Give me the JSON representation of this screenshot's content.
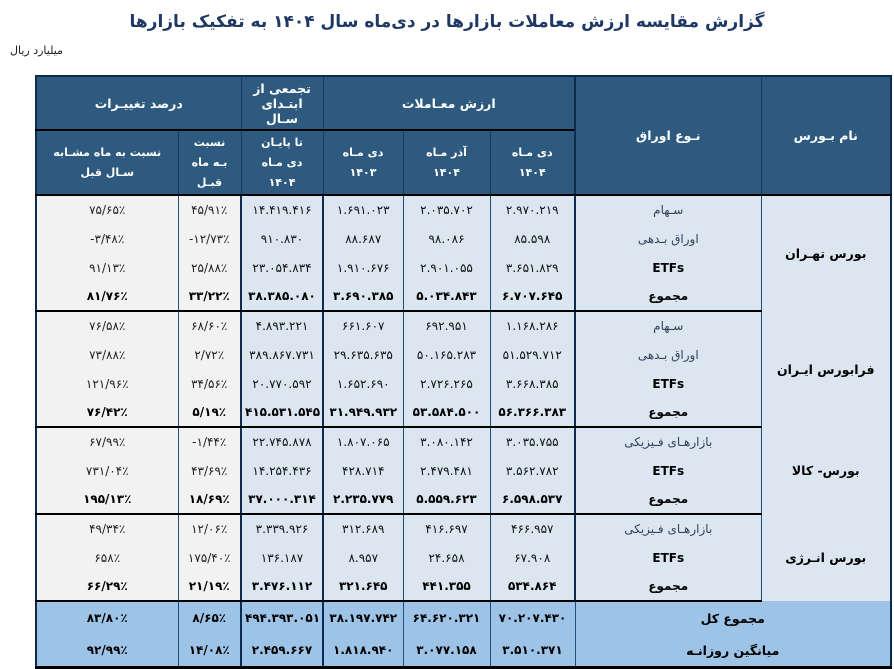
{
  "title": "گزارش مقایسه ارزش معاملات بازارها در دی‌ماه سال ۱۴۰۴ به تفکیک بازارها",
  "unit_label": "میلیارد ریال",
  "colors": {
    "header_bg": "#2d5a7e",
    "body_blue": "#dce6f1",
    "percent_bg": "#f2f2f2",
    "footer_bg": "#9dc3e6",
    "title_color": "#1f3864",
    "border_dark": "#0d2b4e"
  },
  "header": {
    "exchange_name": "نام بـورس",
    "securities_type": "نـوع اوراق",
    "trade_value": "ارزش معـاملات",
    "month_current": "دی مـاه ۱۴۰۴",
    "month_prev": "آذر مـاه ۱۴۰۴",
    "month_lastyear": "دی مـاه ۱۴۰۳",
    "cumulative": "تجمعی از ابتـدای سـال",
    "cumulative_sub": "تا پایـان دی مـاه ۱۴۰۴",
    "pct_changes": "درصد تغییـرات",
    "pct_mom": "نسبت بـه ماه قبـل",
    "pct_yoy": "نسبت به ماه مشـابه سـال قبل"
  },
  "groups": [
    {
      "name": "بورس تهـران",
      "rows": [
        {
          "label": "سـهام",
          "d1404": "۲.۹۷۰.۲۱۹",
          "a1404": "۲.۰۳۵.۷۰۲",
          "d1403": "۱.۶۹۱.۰۲۳",
          "cum": "۱۴.۴۱۹.۴۱۶",
          "mom": "۴۵/۹۱٪",
          "yoy": "۷۵/۶۵٪"
        },
        {
          "label": "اوراق بـدهی",
          "d1404": "۸۵.۵۹۸",
          "a1404": "۹۸.۰۸۶",
          "d1403": "۸۸.۶۸۷",
          "cum": "۹۱۰.۸۳۰",
          "mom": "-۱۲/۷۳٪",
          "yoy": "-۳/۴۸٪"
        },
        {
          "label": "ETFs",
          "d1404": "۳.۶۵۱.۸۲۹",
          "a1404": "۲.۹۰۱.۰۵۵",
          "d1403": "۱.۹۱۰.۶۷۶",
          "cum": "۲۳.۰۵۴.۸۳۴",
          "mom": "۲۵/۸۸٪",
          "yoy": "۹۱/۱۳٪"
        },
        {
          "label": "مجموع",
          "d1404": "۶.۷۰۷.۶۴۵",
          "a1404": "۵.۰۳۴.۸۴۳",
          "d1403": "۳.۶۹۰.۳۸۵",
          "cum": "۳۸.۳۸۵.۰۸۰",
          "mom": "۳۳/۲۲٪",
          "yoy": "۸۱/۷۶٪"
        }
      ]
    },
    {
      "name": "فرابورس ایـران",
      "rows": [
        {
          "label": "سـهام",
          "d1404": "۱.۱۶۸.۲۸۶",
          "a1404": "۶۹۲.۹۵۱",
          "d1403": "۶۶۱.۶۰۷",
          "cum": "۴.۸۹۳.۲۲۱",
          "mom": "۶۸/۶۰٪",
          "yoy": "۷۶/۵۸٪"
        },
        {
          "label": "اوراق بـدهی",
          "d1404": "۵۱.۵۲۹.۷۱۲",
          "a1404": "۵۰.۱۶۵.۲۸۳",
          "d1403": "۲۹.۶۳۵.۶۳۵",
          "cum": "۳۸۹.۸۶۷.۷۳۱",
          "mom": "۲/۷۲٪",
          "yoy": "۷۳/۸۸٪"
        },
        {
          "label": "ETFs",
          "d1404": "۳.۶۶۸.۳۸۵",
          "a1404": "۲.۷۲۶.۲۶۵",
          "d1403": "۱.۶۵۲.۶۹۰",
          "cum": "۲۰.۷۷۰.۵۹۲",
          "mom": "۳۴/۵۶٪",
          "yoy": "۱۲۱/۹۶٪"
        },
        {
          "label": "مجموع",
          "d1404": "۵۶.۳۶۶.۳۸۳",
          "a1404": "۵۳.۵۸۴.۵۰۰",
          "d1403": "۳۱.۹۴۹.۹۳۲",
          "cum": "۴۱۵.۵۳۱.۵۴۵",
          "mom": "۵/۱۹٪",
          "yoy": "۷۶/۴۲٪"
        }
      ]
    },
    {
      "name": "بورس- کالا",
      "rows": [
        {
          "label": "بازارهـای فـیزیکی",
          "d1404": "۳.۰۳۵.۷۵۵",
          "a1404": "۳.۰۸۰.۱۴۲",
          "d1403": "۱.۸۰۷.۰۶۵",
          "cum": "۲۲.۷۴۵.۸۷۸",
          "mom": "-۱/۴۴٪",
          "yoy": "۶۷/۹۹٪"
        },
        {
          "label": "ETFs",
          "d1404": "۳.۵۶۲.۷۸۲",
          "a1404": "۲.۴۷۹.۴۸۱",
          "d1403": "۴۲۸.۷۱۴",
          "cum": "۱۴.۲۵۴.۴۳۶",
          "mom": "۴۳/۶۹٪",
          "yoy": "۷۳۱/۰۴٪"
        },
        {
          "label": "مجموع",
          "d1404": "۶.۵۹۸.۵۳۷",
          "a1404": "۵.۵۵۹.۶۲۳",
          "d1403": "۲.۲۳۵.۷۷۹",
          "cum": "۳۷.۰۰۰.۳۱۴",
          "mom": "۱۸/۶۹٪",
          "yoy": "۱۹۵/۱۳٪"
        }
      ]
    },
    {
      "name": "بورس انـرژی",
      "rows": [
        {
          "label": "بازارهـای فـیزیکی",
          "d1404": "۴۶۶.۹۵۷",
          "a1404": "۴۱۶.۶۹۷",
          "d1403": "۳۱۲.۶۸۹",
          "cum": "۳.۳۳۹.۹۲۶",
          "mom": "۱۲/۰۶٪",
          "yoy": "۴۹/۳۴٪"
        },
        {
          "label": "ETFs",
          "d1404": "۶۷.۹۰۸",
          "a1404": "۲۴.۶۵۸",
          "d1403": "۸.۹۵۷",
          "cum": "۱۳۶.۱۸۷",
          "mom": "۱۷۵/۴۰٪",
          "yoy": "۶۵۸٪"
        },
        {
          "label": "مجموع",
          "d1404": "۵۳۴.۸۶۴",
          "a1404": "۴۴۱.۳۵۵",
          "d1403": "۳۲۱.۶۴۵",
          "cum": "۳.۴۷۶.۱۱۲",
          "mom": "۲۱/۱۹٪",
          "yoy": "۶۶/۲۹٪"
        }
      ]
    }
  ],
  "footer": [
    {
      "label": "مجموع کل",
      "d1404": "۷۰.۲۰۷.۴۳۰",
      "a1404": "۶۴.۶۲۰.۳۲۱",
      "d1403": "۳۸.۱۹۷.۷۴۲",
      "cum": "۴۹۴.۳۹۳.۰۵۱",
      "mom": "۸/۶۵٪",
      "yoy": "۸۳/۸۰٪"
    },
    {
      "label": "میانگین روزانـه",
      "d1404": "۳.۵۱۰.۳۷۱",
      "a1404": "۳.۰۷۷.۱۵۸",
      "d1403": "۱.۸۱۸.۹۴۰",
      "cum": "۲.۴۵۹.۶۶۷",
      "mom": "۱۴/۰۸٪",
      "yoy": "۹۲/۹۹٪"
    }
  ]
}
